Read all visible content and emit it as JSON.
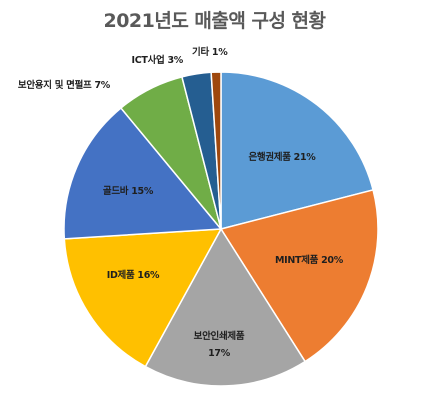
{
  "chart_data": {
    "type": "pie",
    "title": "2021년도 매출액 구성 현황",
    "start": "top",
    "direction": "clockwise",
    "legend": "none",
    "slices": [
      {
        "label": "은행권제품",
        "value": 21,
        "display": "은행권제품 21%",
        "color": "#5B9BD5",
        "label_pos": "inside",
        "text_color": "#1f1f1f"
      },
      {
        "label": "MINT제품",
        "value": 20,
        "display": "MINT제품 20%",
        "color": "#ED7D31",
        "label_pos": "inside",
        "text_color": "#1f1f1f"
      },
      {
        "label": "보안인쇄제품",
        "value": 17,
        "display": "보안인쇄제품\n17%",
        "color": "#A5A5A5",
        "label_pos": "inside",
        "text_color": "#1f1f1f"
      },
      {
        "label": "ID제품",
        "value": 16,
        "display": "ID제품 16%",
        "color": "#FFC000",
        "label_pos": "inside",
        "text_color": "#1f1f1f"
      },
      {
        "label": "골드바",
        "value": 15,
        "display": "골드바 15%",
        "color": "#4472C4",
        "label_pos": "inside",
        "text_color": "#1f1f1f"
      },
      {
        "label": "보안용지 및 면펄프",
        "value": 7,
        "display": "보안용지 및 면펄프 7%",
        "color": "#70AD47",
        "label_pos": "outside",
        "text_color": "#1f1f1f"
      },
      {
        "label": "ICT사업",
        "value": 3,
        "display": "ICT사업 3%",
        "color": "#255E91",
        "label_pos": "outside",
        "text_color": "#1f1f1f"
      },
      {
        "label": "기타",
        "value": 1,
        "display": "기타 1%",
        "color": "#9E480E",
        "label_pos": "outside",
        "text_color": "#1f1f1f"
      }
    ]
  }
}
